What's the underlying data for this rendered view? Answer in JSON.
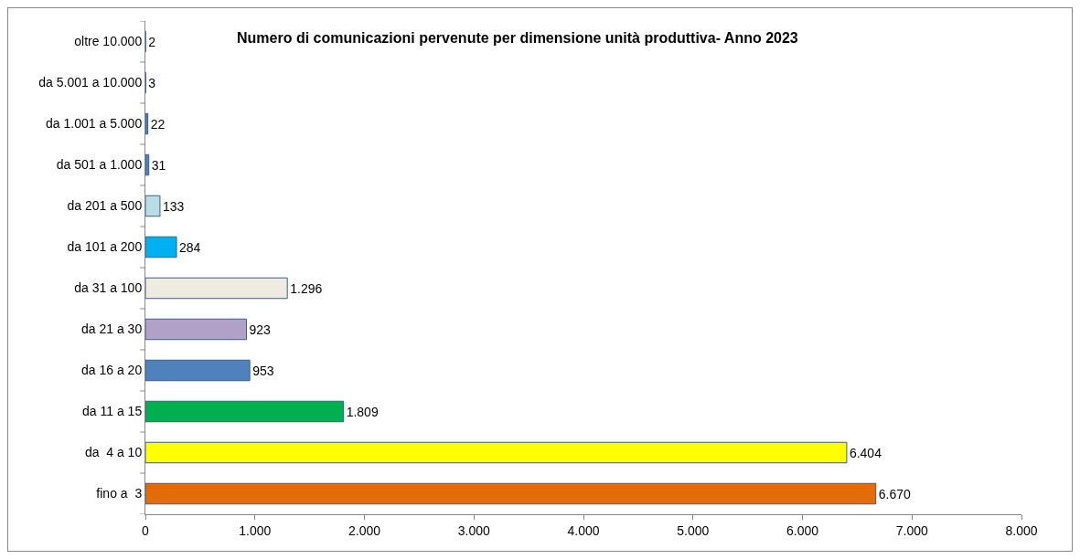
{
  "chart_data": {
    "type": "bar",
    "orientation": "horizontal",
    "title": "Numero di comunicazioni pervenute per dimensione unità produttiva- Anno 2023",
    "categories": [
      "oltre 10.000",
      "da 5.001 a 10.000",
      "da 1.001 a 5.000",
      "da 501 a 1.000",
      "da 201 a 500",
      "da 101 a 200",
      "da 31 a 100",
      "da 21 a 30",
      "da 16 a 20",
      "da 11 a 15",
      "da  4 a 10",
      "fino a  3"
    ],
    "values": [
      2,
      3,
      22,
      31,
      133,
      284,
      1296,
      923,
      953,
      1809,
      6404,
      6670
    ],
    "value_labels": [
      "2",
      "3",
      "22",
      "31",
      "133",
      "284",
      "1.296",
      "923",
      "953",
      "1.809",
      "6.404",
      "6.670"
    ],
    "colors": [
      "#8eb4e3",
      "#8eb4e3",
      "#4f81bd",
      "#4f81bd",
      "#b7dee8",
      "#00b0f0",
      "#eeece1",
      "#b2a1c7",
      "#4f81bd",
      "#00b050",
      "#ffff00",
      "#e36c09"
    ],
    "xlim": [
      0,
      8000
    ],
    "xticks": [
      0,
      {
        "value": 1000,
        "label": "1.000"
      },
      {
        "value": 2000,
        "label": "2.000"
      },
      {
        "value": 3000,
        "label": "3.000"
      },
      {
        "value": 4000,
        "label": "4.000"
      },
      {
        "value": 5000,
        "label": "5.000"
      },
      {
        "value": 6000,
        "label": "6.000"
      },
      {
        "value": 7000,
        "label": "7.000"
      },
      {
        "value": 8000,
        "label": "8.000"
      }
    ],
    "grid": false
  }
}
